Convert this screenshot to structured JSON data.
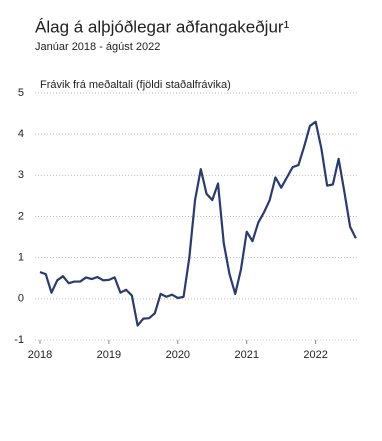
{
  "chart_data": {
    "type": "line",
    "title": "Álag á alþjóðlegar aðfangakeðjur¹",
    "subtitle": "Janúar 2018 - ágúst 2022",
    "y_label": "Frávik frá meðaltali (fjöldi staðalfrávika)",
    "x": [
      2018,
      2018.0833,
      2018.1667,
      2018.25,
      2018.3333,
      2018.4167,
      2018.5,
      2018.5833,
      2018.6667,
      2018.75,
      2018.8333,
      2018.9167,
      2019,
      2019.0833,
      2019.1667,
      2019.25,
      2019.3333,
      2019.4167,
      2019.5,
      2019.5833,
      2019.6667,
      2019.75,
      2019.8333,
      2019.9167,
      2020,
      2020.0833,
      2020.1667,
      2020.25,
      2020.3333,
      2020.4167,
      2020.5,
      2020.5833,
      2020.6667,
      2020.75,
      2020.8333,
      2020.9167,
      2021,
      2021.0833,
      2021.1667,
      2021.25,
      2021.3333,
      2021.4167,
      2021.5,
      2021.5833,
      2021.6667,
      2021.75,
      2021.8333,
      2021.9167,
      2022,
      2022.0833,
      2022.1667,
      2022.25,
      2022.3333,
      2022.4167,
      2022.5,
      2022.5833
    ],
    "series": [
      {
        "color": "#2a3b6e",
        "values": [
          0.65,
          0.6,
          0.15,
          0.45,
          0.55,
          0.38,
          0.42,
          0.42,
          0.52,
          0.48,
          0.53,
          0.45,
          0.46,
          0.52,
          0.15,
          0.22,
          0.08,
          -0.65,
          -0.48,
          -0.47,
          -0.35,
          0.12,
          0.05,
          0.1,
          0.02,
          0.05,
          1.0,
          2.4,
          3.15,
          2.55,
          2.4,
          2.8,
          1.35,
          0.6,
          0.12,
          0.72,
          1.63,
          1.4,
          1.85,
          2.1,
          2.4,
          2.95,
          2.7,
          2.95,
          3.2,
          3.25,
          3.7,
          4.2,
          4.3,
          3.65,
          2.75,
          2.78,
          3.4,
          2.6,
          1.75,
          1.47
        ]
      }
    ],
    "xlim": [
      2018,
      2022.6
    ],
    "xticks": [
      2018,
      2019,
      2020,
      2021,
      2022
    ],
    "ylim": [
      -1,
      5
    ],
    "yticks": [
      -1,
      0,
      1,
      2,
      3,
      4,
      5
    ],
    "grid": true
  }
}
